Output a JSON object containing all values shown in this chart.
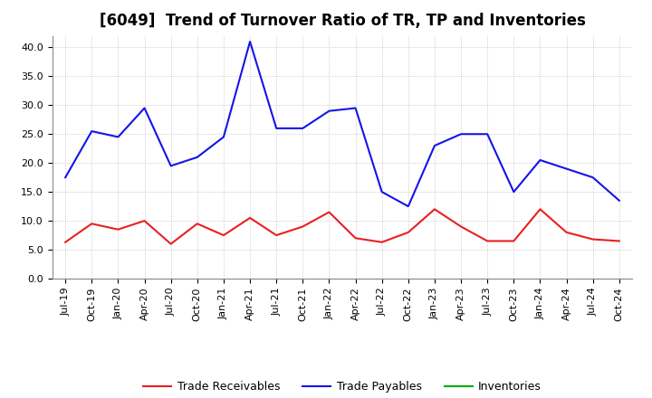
{
  "title": "[6049]  Trend of Turnover Ratio of TR, TP and Inventories",
  "labels": [
    "Jul-19",
    "Oct-19",
    "Jan-20",
    "Apr-20",
    "Jul-20",
    "Oct-20",
    "Jan-21",
    "Apr-21",
    "Jul-21",
    "Oct-21",
    "Jan-22",
    "Apr-22",
    "Jul-22",
    "Oct-22",
    "Jan-23",
    "Apr-23",
    "Jul-23",
    "Oct-23",
    "Jan-24",
    "Apr-24",
    "Jul-24",
    "Oct-24"
  ],
  "trade_receivables": [
    6.3,
    9.5,
    8.5,
    10.0,
    6.0,
    9.5,
    7.5,
    10.5,
    7.5,
    9.0,
    11.5,
    7.0,
    6.3,
    8.0,
    12.0,
    9.0,
    6.5,
    6.5,
    12.0,
    8.0,
    6.8,
    6.5
  ],
  "trade_payables": [
    17.5,
    25.5,
    24.5,
    29.5,
    19.5,
    21.0,
    24.5,
    41.0,
    26.0,
    26.0,
    29.0,
    29.5,
    15.0,
    12.5,
    23.0,
    25.0,
    25.0,
    15.0,
    20.5,
    19.0,
    17.5,
    13.5
  ],
  "inventories": [
    null,
    null,
    null,
    null,
    null,
    null,
    null,
    null,
    null,
    null,
    null,
    null,
    null,
    null,
    null,
    null,
    null,
    null,
    null,
    null,
    null,
    null
  ],
  "tr_color": "#e82020",
  "tp_color": "#1414e8",
  "inv_color": "#00aa00",
  "ylim": [
    0.0,
    42.0
  ],
  "yticks": [
    0.0,
    5.0,
    10.0,
    15.0,
    20.0,
    25.0,
    30.0,
    35.0,
    40.0
  ],
  "bg_color": "#ffffff",
  "grid_color": "#aaaaaa",
  "title_fontsize": 12,
  "axis_fontsize": 8,
  "legend_fontsize": 9
}
